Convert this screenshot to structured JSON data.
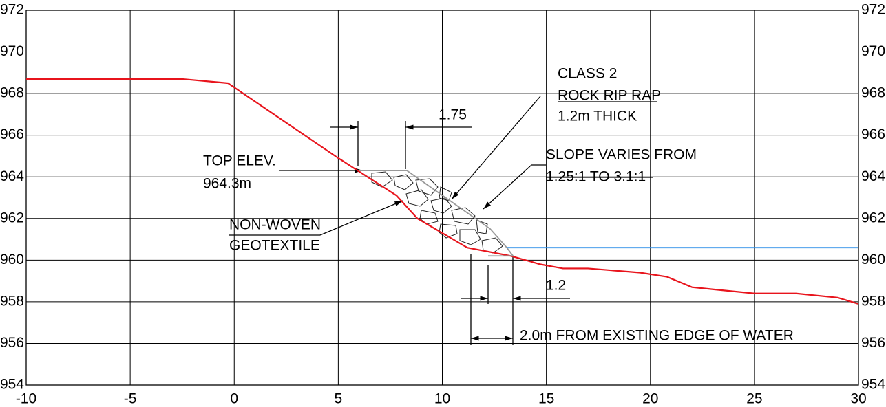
{
  "chart_data": {
    "type": "line",
    "xlim": [
      -10,
      30
    ],
    "xticks": [
      -10,
      -5,
      0,
      5,
      10,
      15,
      20,
      25,
      30
    ],
    "ylim": [
      954,
      972
    ],
    "yticks": [
      954,
      956,
      958,
      960,
      962,
      964,
      966,
      968,
      970,
      972
    ],
    "grid": true,
    "series": [
      {
        "color": "#e8141c",
        "x": [
          -10,
          -2.5,
          -0.3,
          5,
          7.8,
          8.8,
          11.2,
          13.3,
          14.7,
          15.8,
          17,
          19.5,
          20.8,
          22,
          23,
          25,
          27,
          29,
          30
        ],
        "values": [
          968.7,
          968.7,
          968.5,
          964.9,
          963.1,
          962.0,
          960.6,
          960.2,
          959.8,
          959.6,
          959.6,
          959.4,
          959.2,
          958.7,
          958.6,
          958.4,
          958.4,
          958.2,
          957.9
        ]
      },
      {
        "color": "#2f8fe8",
        "x": [
          13.1,
          30
        ],
        "values": [
          960.6,
          960.6
        ]
      },
      {
        "color": "#999999",
        "x": [
          6.0,
          8.3,
          12.3,
          13.1,
          13.4,
          12.2
        ],
        "values": [
          964.3,
          964.3,
          961.5,
          960.6,
          960.2,
          960.2
        ]
      }
    ],
    "annotations": [
      "CLASS 2",
      "ROCK RIP RAP",
      "1.2m THICK",
      "1.75",
      "SLOPE VARIES FROM",
      "1.25:1 TO 3.1:1",
      "TOP ELEV.",
      "964.3m",
      "NON-WOVEN",
      "GEOTEXTILE",
      "1.2",
      "2.0m FROM EXISTING EDGE OF WATER"
    ]
  }
}
